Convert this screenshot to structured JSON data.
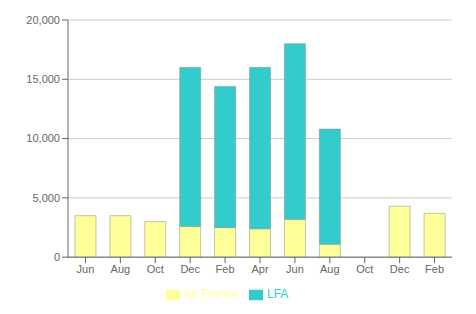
{
  "chart_data": {
    "type": "bar",
    "stacked": true,
    "categories": [
      "Jun",
      "Aug",
      "Oct",
      "Dec",
      "Feb",
      "Apr",
      "Jun",
      "Aug",
      "Oct",
      "Dec",
      "Feb"
    ],
    "series": [
      {
        "name": "Air France",
        "color": "#ffff99",
        "values": [
          3500,
          3500,
          3000,
          2600,
          2500,
          2400,
          3200,
          1100,
          0,
          4300,
          3700
        ]
      },
      {
        "name": "LFA",
        "color": "#33cccc",
        "values": [
          0,
          0,
          0,
          13400,
          11900,
          13600,
          14800,
          9700,
          0,
          0,
          0
        ]
      }
    ],
    "ylim": [
      0,
      20000
    ],
    "yticks": [
      0,
      {
        "value": 5000,
        "label": "5,000"
      },
      {
        "value": 10000,
        "label": "10,000"
      },
      {
        "value": 15000,
        "label": "15,000"
      },
      {
        "value": 20000,
        "label": "20,000"
      }
    ],
    "grid": true,
    "legend": "bottom"
  }
}
